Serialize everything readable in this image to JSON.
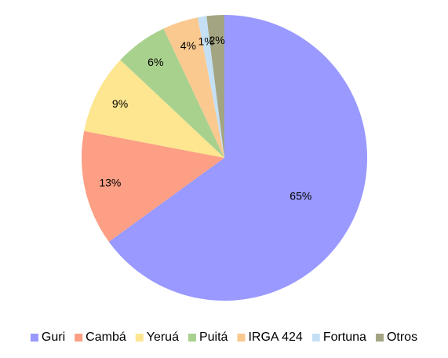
{
  "chart_data": {
    "type": "pie",
    "categories": [
      "Guri",
      "Cambá",
      "Yeruá",
      "Puitá",
      "IRGA 424",
      "Fortuna",
      "Otros"
    ],
    "values": [
      65,
      13,
      9,
      6,
      4,
      1,
      2
    ],
    "value_labels": [
      "65%",
      "13%",
      "9%",
      "6%",
      "4%",
      "1%",
      "2%"
    ],
    "colors": [
      "#9999ff",
      "#fc9f84",
      "#fde68f",
      "#a9d18e",
      "#fac990",
      "#c5e0f5",
      "#a3a582"
    ],
    "legend": "bottom"
  }
}
